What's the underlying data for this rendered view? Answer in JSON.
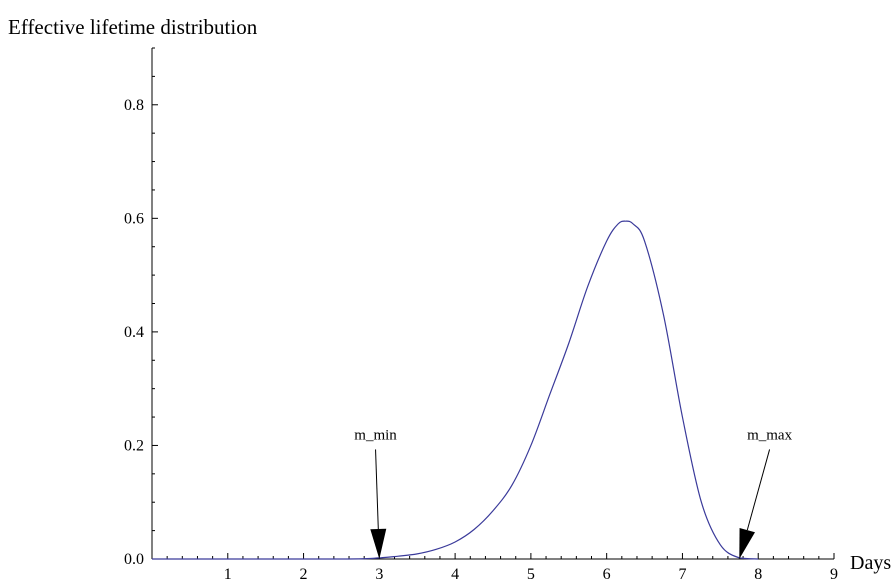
{
  "chart_data": {
    "type": "line",
    "title": "Effective lifetime distribution",
    "xlabel": "Days",
    "ylabel": "",
    "xlim": [
      0,
      9
    ],
    "ylim": [
      0,
      0.9
    ],
    "x_ticks": [
      "1",
      "2",
      "3",
      "4",
      "5",
      "6",
      "7",
      "8",
      "9"
    ],
    "y_ticks": [
      "0.0",
      "0.2",
      "0.4",
      "0.6",
      "0.8"
    ],
    "grid": false,
    "legend": "none",
    "series": [
      {
        "color": "#3a3a9a",
        "x": [
          0,
          2.5,
          3.0,
          3.25,
          3.5,
          3.75,
          4.0,
          4.25,
          4.5,
          4.75,
          5.0,
          5.25,
          5.5,
          5.75,
          6.0,
          6.15,
          6.25,
          6.35,
          6.5,
          6.75,
          7.0,
          7.25,
          7.5,
          7.75,
          8.0
        ],
        "y": [
          0,
          0,
          0.002,
          0.005,
          0.009,
          0.017,
          0.03,
          0.052,
          0.085,
          0.13,
          0.2,
          0.29,
          0.38,
          0.48,
          0.56,
          0.59,
          0.595,
          0.59,
          0.56,
          0.43,
          0.25,
          0.1,
          0.025,
          0.002,
          0
        ]
      }
    ],
    "annotations": [
      {
        "text": "m_min",
        "x": 3.0,
        "y": 0,
        "label_x": 2.95,
        "label_y": 0.2
      },
      {
        "text": "m_max",
        "x": 7.75,
        "y": 0,
        "label_x": 8.15,
        "label_y": 0.2
      }
    ]
  }
}
